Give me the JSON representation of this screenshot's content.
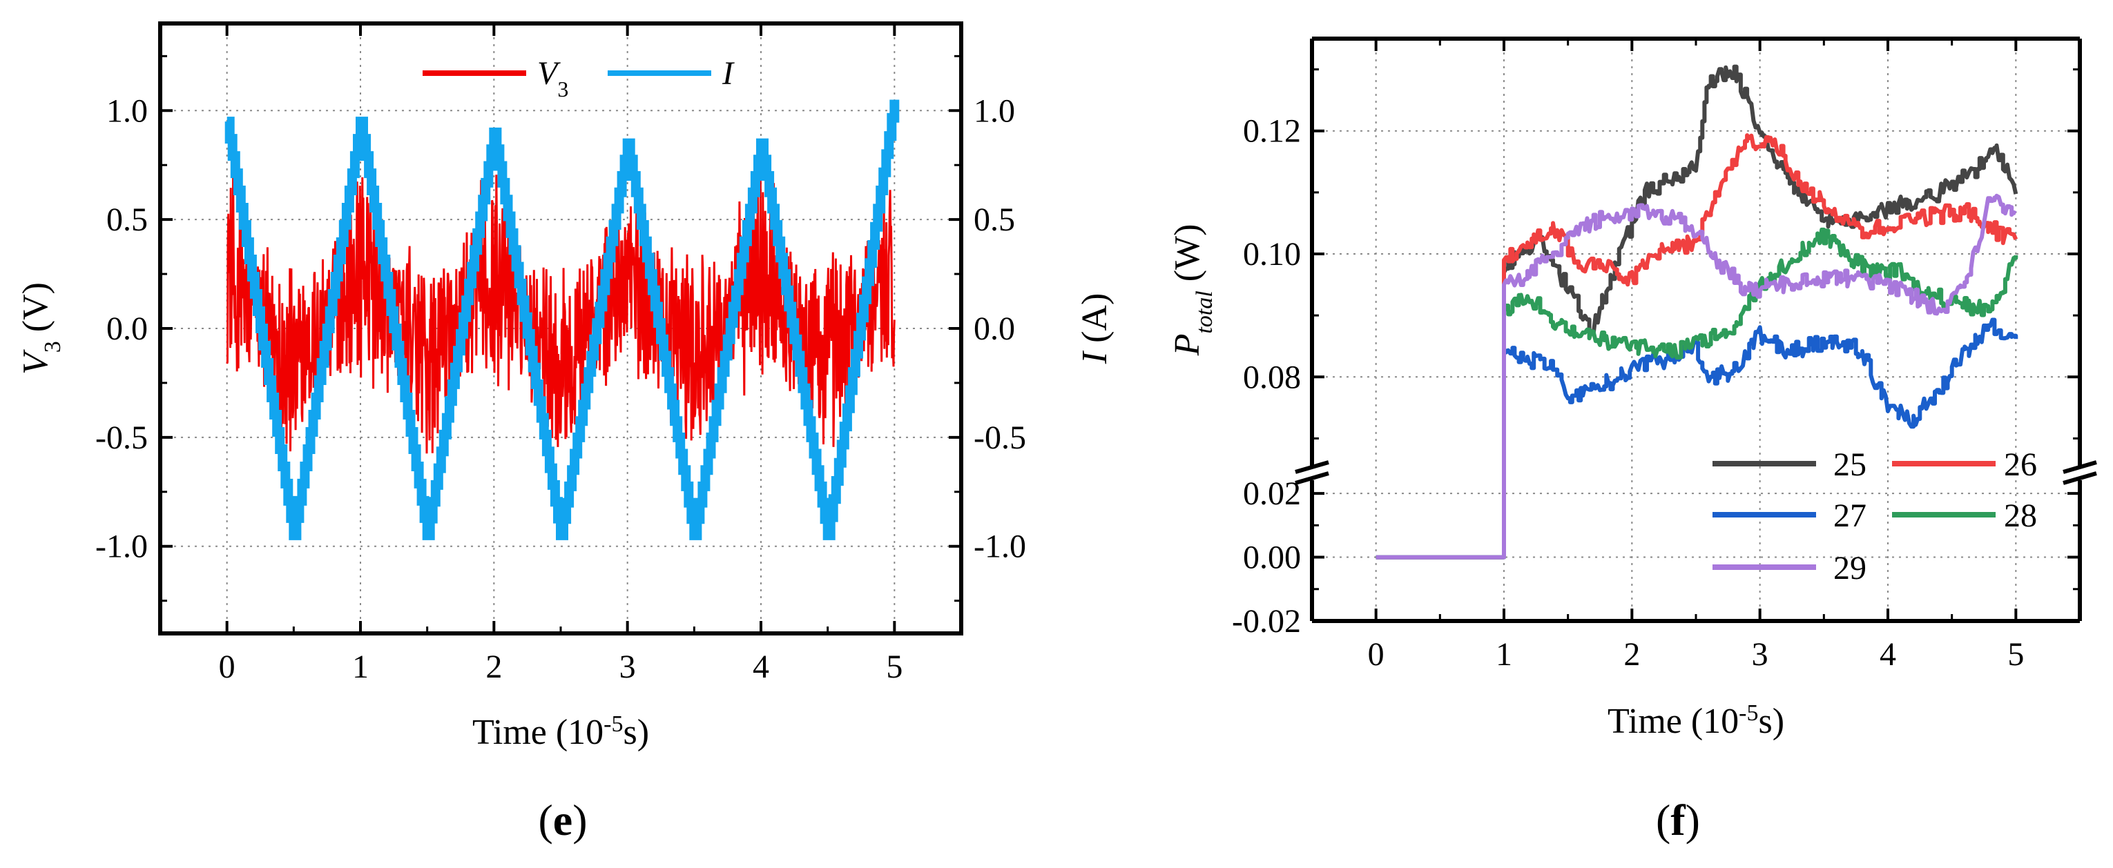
{
  "chart_data": [
    {
      "id": "e",
      "panel_label": {
        "open": "(",
        "letter": "e",
        "close": ")"
      },
      "type": "line",
      "title": "",
      "xlabel": {
        "main": "Time (10",
        "exp": "-5",
        "tail": "s)"
      },
      "ylabel": {
        "sym": "V",
        "sub": "3",
        "unit": " (V)"
      },
      "y2label": {
        "sym": "I",
        "unit": " (A)"
      },
      "xlim": [
        -0.5,
        5.5
      ],
      "ylim": [
        -1.4,
        1.4
      ],
      "xticks": [
        "0",
        "1",
        "2",
        "3",
        "4",
        "5"
      ],
      "yticks": [
        "1.0",
        "0.5",
        "0.0",
        "-0.5",
        "-1.0"
      ],
      "y2ticks": [
        "1.0",
        "0.5",
        "0.0",
        "-0.5",
        "-1.0"
      ],
      "grid": true,
      "legend_position": "top-center",
      "series": [
        {
          "name": "V3",
          "legend_sym": "V",
          "legend_sub": "3",
          "color": "#f00000",
          "axis": "left",
          "desc": "noisy oscillation, period 1 (10^-5 s), amplitude ~0.3-0.7 V",
          "x": [
            0,
            0.25,
            0.5,
            0.75,
            1,
            1.25,
            1.5,
            1.75,
            2,
            2.25,
            2.5,
            2.75,
            3,
            2.25,
            3.5,
            3.75,
            4,
            4.25,
            4.5,
            4.75,
            5
          ],
          "y": [
            0.1,
            -0.1,
            -0.35,
            0.0,
            0.35,
            0.1,
            -0.35,
            0.0,
            0.35,
            0.1,
            -0.35,
            0.0,
            0.35,
            0.1,
            -0.35,
            0.0,
            0.35,
            0.1,
            -0.35,
            0.0,
            0.3
          ]
        },
        {
          "name": "I",
          "legend_sym": "I",
          "legend_sub": "",
          "color": "#12a5ef",
          "axis": "right",
          "desc": "stepped triangle wave, period 1 (10^-5 s), amplitude ~0.95 A",
          "x": [
            0,
            0.5,
            1,
            1.5,
            2,
            2.5,
            3,
            3.5,
            4,
            4.5,
            5
          ],
          "y": [
            0.95,
            -0.95,
            0.95,
            -0.95,
            0.9,
            -0.95,
            0.85,
            -0.95,
            0.85,
            -0.95,
            1.05
          ]
        }
      ]
    },
    {
      "id": "f",
      "panel_label": {
        "open": "(",
        "letter": "f",
        "close": ")"
      },
      "type": "line",
      "title": "",
      "xlabel": {
        "main": "Time (10",
        "exp": "-5",
        "tail": "s)"
      },
      "ylabel": {
        "sym": "P",
        "sub": "total",
        "unit": " (W)"
      },
      "xlim": [
        -0.5,
        5.5
      ],
      "ylim_lower": [
        -0.02,
        0.025
      ],
      "ylim_upper": [
        0.065,
        0.135
      ],
      "axis_break": true,
      "xticks": [
        "0",
        "1",
        "2",
        "3",
        "4",
        "5"
      ],
      "yticks_upper": [
        "0.12",
        "0.10",
        "0.08"
      ],
      "yticks_lower": [
        "0.02",
        "0.00",
        "-0.02"
      ],
      "grid": true,
      "legend_position": "bottom-right",
      "series": [
        {
          "name": "25",
          "color": "#454545",
          "x": [
            0,
            1,
            1.0,
            1.1,
            1.3,
            1.5,
            1.7,
            1.9,
            2.1,
            2.3,
            2.5,
            2.6,
            2.8,
            3.0,
            3.2,
            3.5,
            3.8,
            4.1,
            4.4,
            4.7,
            4.85,
            5.0
          ],
          "y": [
            0,
            0,
            0.097,
            0.1,
            0.102,
            0.094,
            0.088,
            0.1,
            0.11,
            0.112,
            0.114,
            0.128,
            0.13,
            0.12,
            0.113,
            0.105,
            0.106,
            0.108,
            0.11,
            0.114,
            0.117,
            0.111
          ]
        },
        {
          "name": "26",
          "color": "#f04040",
          "x": [
            0,
            1,
            1.0,
            1.2,
            1.4,
            1.6,
            1.8,
            2.0,
            2.2,
            2.5,
            2.7,
            2.9,
            3.1,
            3.3,
            3.5,
            3.8,
            4.0,
            4.3,
            4.6,
            4.9,
            5.0
          ],
          "y": [
            0,
            0,
            0.099,
            0.102,
            0.104,
            0.098,
            0.098,
            0.096,
            0.1,
            0.102,
            0.112,
            0.118,
            0.119,
            0.112,
            0.108,
            0.104,
            0.104,
            0.106,
            0.107,
            0.103,
            0.102
          ]
        },
        {
          "name": "27",
          "color": "#1a5fcc",
          "x": [
            0,
            1,
            1.0,
            1.2,
            1.4,
            1.5,
            1.7,
            1.9,
            2.1,
            2.3,
            2.5,
            2.6,
            2.8,
            3.0,
            3.2,
            3.4,
            3.6,
            3.8,
            4.0,
            4.2,
            4.4,
            4.6,
            4.8,
            5.0
          ],
          "y": [
            0,
            0,
            0.084,
            0.083,
            0.081,
            0.076,
            0.078,
            0.08,
            0.082,
            0.083,
            0.085,
            0.08,
            0.081,
            0.087,
            0.084,
            0.085,
            0.086,
            0.084,
            0.075,
            0.073,
            0.078,
            0.084,
            0.088,
            0.087
          ]
        },
        {
          "name": "28",
          "color": "#2e9c5a",
          "x": [
            0,
            1,
            1.0,
            1.2,
            1.4,
            1.6,
            1.8,
            2.0,
            2.3,
            2.6,
            2.8,
            3.0,
            3.3,
            3.5,
            3.7,
            3.9,
            4.1,
            4.3,
            4.5,
            4.8,
            5.0
          ],
          "y": [
            0,
            0,
            0.091,
            0.093,
            0.089,
            0.087,
            0.086,
            0.085,
            0.084,
            0.086,
            0.088,
            0.095,
            0.1,
            0.103,
            0.099,
            0.097,
            0.097,
            0.094,
            0.092,
            0.091,
            0.099
          ]
        },
        {
          "name": "29",
          "color": "#a878dc",
          "x": [
            0,
            1,
            1.0,
            1.2,
            1.4,
            1.6,
            1.8,
            2.0,
            2.3,
            2.5,
            2.7,
            2.9,
            3.2,
            3.5,
            3.8,
            4.0,
            4.2,
            4.4,
            4.6,
            4.8,
            5.0
          ],
          "y": [
            0,
            0,
            0.095,
            0.097,
            0.1,
            0.104,
            0.106,
            0.107,
            0.106,
            0.104,
            0.098,
            0.094,
            0.095,
            0.096,
            0.096,
            0.095,
            0.093,
            0.091,
            0.094,
            0.109,
            0.107
          ]
        }
      ]
    }
  ]
}
